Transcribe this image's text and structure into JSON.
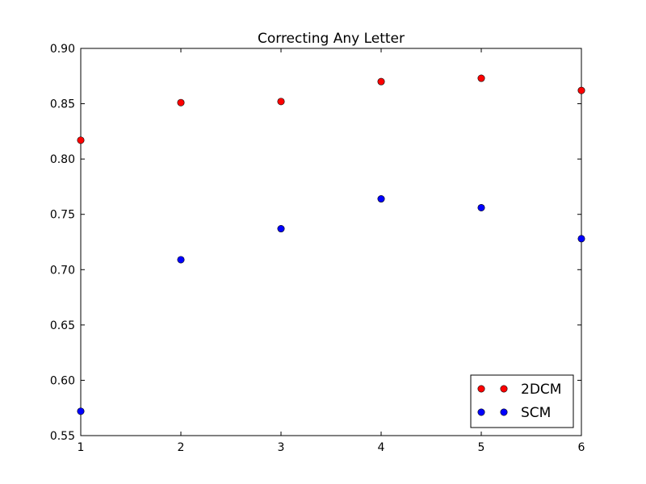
{
  "chart_data": {
    "type": "scatter",
    "title": "Correcting Any Letter",
    "xlabel": "",
    "ylabel": "",
    "xlim": [
      1,
      6
    ],
    "ylim": [
      0.55,
      0.9
    ],
    "x_ticks": [
      "1",
      "2",
      "3",
      "4",
      "5",
      "6"
    ],
    "y_ticks": [
      "0.55",
      "0.60",
      "0.65",
      "0.70",
      "0.75",
      "0.80",
      "0.85",
      "0.90"
    ],
    "grid": false,
    "legend_position": "lower-right",
    "x": [
      1,
      2,
      3,
      4,
      5,
      6
    ],
    "series": [
      {
        "name": "2DCM",
        "color": "#ff0000",
        "values": [
          0.817,
          0.851,
          0.852,
          0.87,
          0.873,
          0.862
        ]
      },
      {
        "name": "SCM",
        "color": "#0000ff",
        "values": [
          0.572,
          0.709,
          0.737,
          0.764,
          0.756,
          0.728
        ]
      }
    ]
  }
}
